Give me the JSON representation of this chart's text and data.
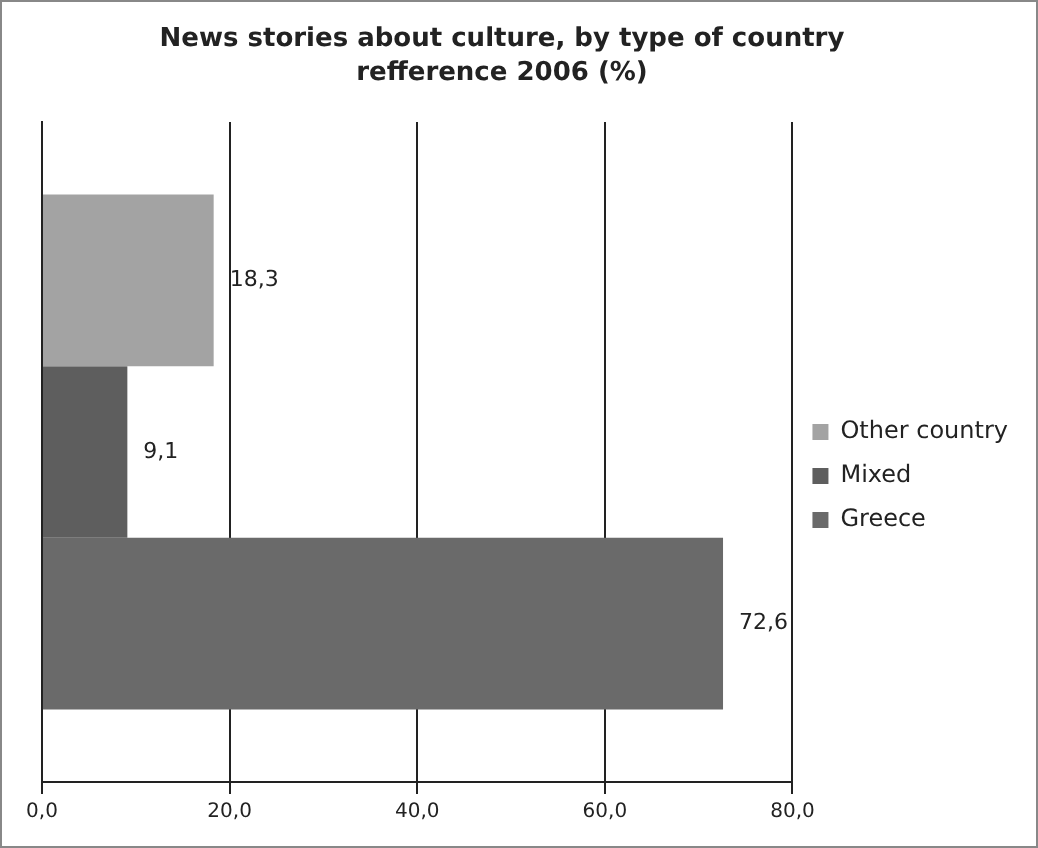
{
  "chart_data": {
    "type": "bar",
    "orientation": "horizontal",
    "title": "News stories about culture, by type of country refference 2006 (%)",
    "categories": [
      null
    ],
    "series": [
      {
        "name": "Other country",
        "color": "#a3a3a3",
        "values": [
          18.3
        ],
        "value_labels": [
          "18,3"
        ]
      },
      {
        "name": "Mixed",
        "color": "#5e5e5e",
        "values": [
          9.1
        ],
        "value_labels": [
          "9,1"
        ]
      },
      {
        "name": "Greece",
        "color": "#6a6a6a",
        "values": [
          72.6
        ],
        "value_labels": [
          "72,6"
        ]
      }
    ],
    "xlim": [
      0,
      80
    ],
    "xticks": [
      {
        "value": 0,
        "label": "0,0"
      },
      {
        "value": 20,
        "label": "20,0"
      },
      {
        "value": 40,
        "label": "40,0"
      },
      {
        "value": 60,
        "label": "60,0"
      },
      {
        "value": 80,
        "label": "80,0"
      }
    ],
    "grid": "x",
    "legend": "right"
  }
}
